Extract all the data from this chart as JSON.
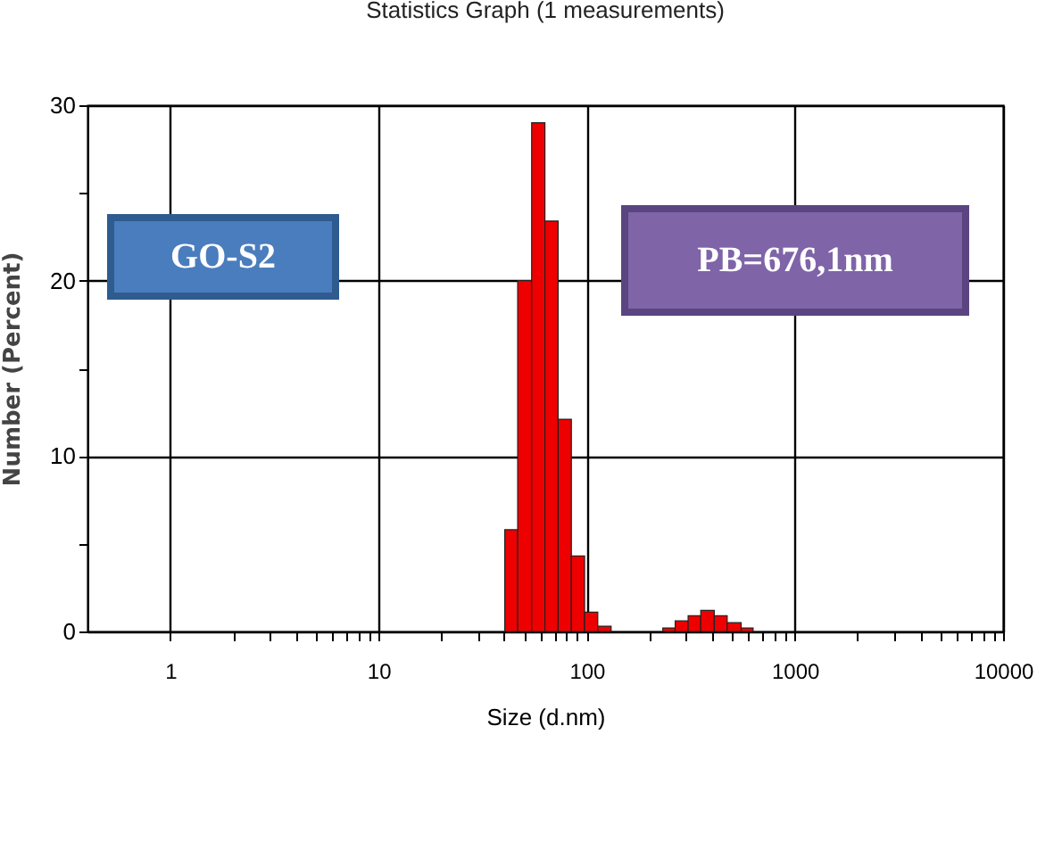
{
  "chart_data": {
    "type": "histogram",
    "title": "Statistics Graph (1 measurements)",
    "xlabel": "Size (d.nm)",
    "ylabel": "Number (Percent)",
    "bins": [
      40.4,
      46.6,
      54.4,
      63,
      72.9,
      84.4,
      97.7,
      113,
      131,
      232,
      266,
      307,
      353,
      410,
      473,
      552,
      630
    ],
    "values": [
      5.8,
      20,
      29,
      23.4,
      12.1,
      4.3,
      1.1,
      0.3,
      null,
      0.2,
      0.6,
      0.9,
      1.2,
      0.9,
      0.5,
      0.2
    ],
    "color": "#ee0000",
    "log": "x",
    "xlim": [
      0.4,
      10000
    ],
    "xticks": [
      1,
      {
        "value": 2,
        "label": null
      },
      {
        "value": 3,
        "label": null
      },
      {
        "value": 4,
        "label": null
      },
      {
        "value": 5,
        "label": null
      },
      {
        "value": 6,
        "label": null
      },
      {
        "value": 7,
        "label": null
      },
      {
        "value": 8,
        "label": null
      },
      {
        "value": 9,
        "label": null
      },
      10,
      {
        "value": 20,
        "label": null
      },
      {
        "value": 30,
        "label": null
      },
      {
        "value": 40,
        "label": null
      },
      {
        "value": 50,
        "label": null
      },
      {
        "value": 60,
        "label": null
      },
      {
        "value": 70,
        "label": null
      },
      {
        "value": 80,
        "label": null
      },
      {
        "value": 90,
        "label": null
      },
      100,
      {
        "value": 200,
        "label": null
      },
      {
        "value": 300,
        "label": null
      },
      {
        "value": 400,
        "label": null
      },
      {
        "value": 500,
        "label": null
      },
      {
        "value": 600,
        "label": null
      },
      {
        "value": 700,
        "label": null
      },
      {
        "value": 800,
        "label": null
      },
      {
        "value": 900,
        "label": null
      },
      1000,
      {
        "value": 2000,
        "label": null
      },
      {
        "value": 3000,
        "label": null
      },
      {
        "value": 4000,
        "label": null
      },
      {
        "value": 5000,
        "label": null
      },
      {
        "value": 6000,
        "label": null
      },
      {
        "value": 7000,
        "label": null
      },
      {
        "value": 8000,
        "label": null
      },
      {
        "value": 9000,
        "label": null
      },
      10000
    ],
    "ylim": [
      0,
      30
    ],
    "yticks": [
      0,
      {
        "value": 5,
        "label": null
      },
      10,
      {
        "value": 15,
        "label": null
      },
      20,
      {
        "value": 25,
        "label": null
      },
      30
    ],
    "grid": true,
    "annotations": [
      "GO-S2",
      "PB=676,1nm"
    ]
  }
}
